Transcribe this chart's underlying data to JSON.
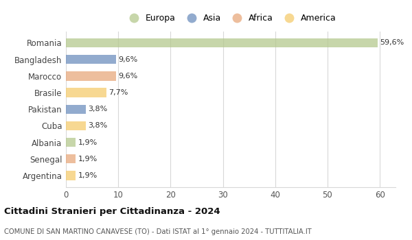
{
  "countries": [
    "Romania",
    "Bangladesh",
    "Marocco",
    "Brasile",
    "Pakistan",
    "Cuba",
    "Albania",
    "Senegal",
    "Argentina"
  ],
  "values": [
    59.6,
    9.6,
    9.6,
    7.7,
    3.8,
    3.8,
    1.9,
    1.9,
    1.9
  ],
  "labels": [
    "59,6%",
    "9,6%",
    "9,6%",
    "7,7%",
    "3,8%",
    "3,8%",
    "1,9%",
    "1,9%",
    "1,9%"
  ],
  "colors": [
    "#b5c98e",
    "#6e8fbe",
    "#e8a87c",
    "#f5cc6e",
    "#6e8fbe",
    "#f5cc6e",
    "#b5c98e",
    "#e8a87c",
    "#f5cc6e"
  ],
  "legend_labels": [
    "Europa",
    "Asia",
    "Africa",
    "America"
  ],
  "legend_colors": [
    "#b5c98e",
    "#6e8fbe",
    "#e8a87c",
    "#f5cc6e"
  ],
  "title": "Cittadini Stranieri per Cittadinanza - 2024",
  "subtitle": "COMUNE DI SAN MARTINO CANAVESE (TO) - Dati ISTAT al 1° gennaio 2024 - TUTTITALIA.IT",
  "xlim": [
    0,
    63
  ],
  "xticks": [
    0,
    10,
    20,
    30,
    40,
    50,
    60
  ],
  "bg_color": "#ffffff",
  "grid_color": "#d8d8d8",
  "bar_alpha": 0.75,
  "bar_height": 0.55
}
